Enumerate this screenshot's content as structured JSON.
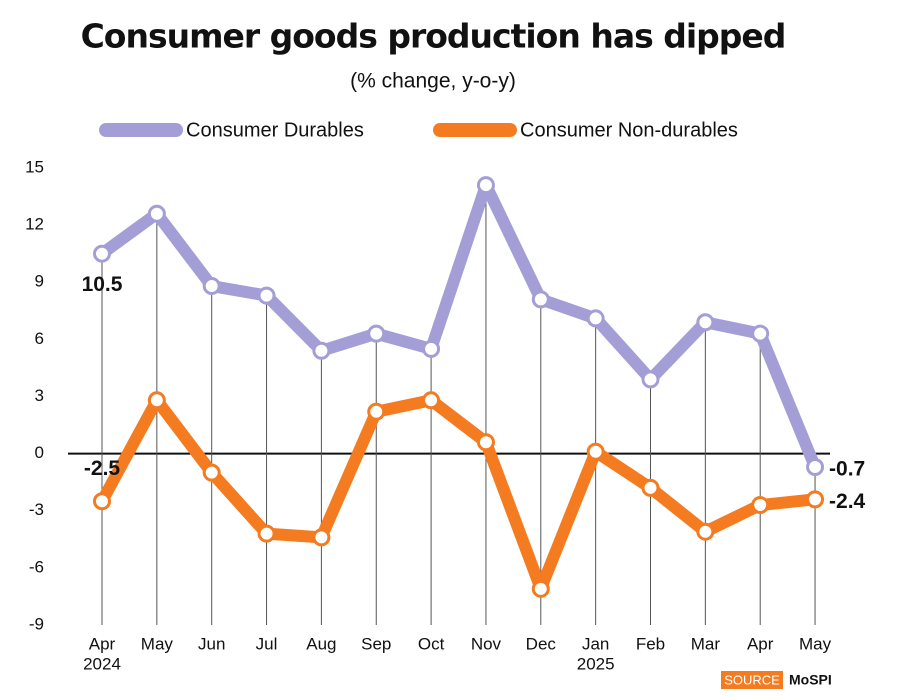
{
  "chart_data": {
    "type": "line",
    "title": "Consumer goods production has dipped",
    "subtitle": "(% change, y-o-y)",
    "categories": [
      "Apr",
      "May",
      "Jun",
      "Jul",
      "Aug",
      "Sep",
      "Oct",
      "Nov",
      "Dec",
      "Jan",
      "Feb",
      "Mar",
      "Apr",
      "May"
    ],
    "category_years": [
      "2024",
      null,
      null,
      null,
      null,
      null,
      null,
      null,
      null,
      "2025",
      null,
      null,
      null,
      null
    ],
    "series": [
      {
        "name": "Consumer Durables",
        "color": "#a39fd6",
        "values": [
          10.5,
          12.6,
          8.8,
          8.3,
          5.4,
          6.3,
          5.5,
          14.1,
          8.1,
          7.1,
          3.9,
          6.9,
          6.3,
          -0.7
        ]
      },
      {
        "name": "Consumer Non-durables",
        "color": "#f47b20",
        "values": [
          -2.5,
          2.8,
          -1.0,
          -4.2,
          -4.4,
          2.2,
          2.8,
          0.6,
          -7.1,
          0.1,
          -1.8,
          -4.1,
          -2.7,
          -2.4
        ]
      }
    ],
    "data_labels": "ends",
    "ylim": [
      -9,
      15
    ],
    "yticks": [
      -9,
      -6,
      -3,
      0,
      3,
      6,
      9,
      12,
      15
    ],
    "source_label": "SOURCE",
    "source": "MoSPI"
  }
}
